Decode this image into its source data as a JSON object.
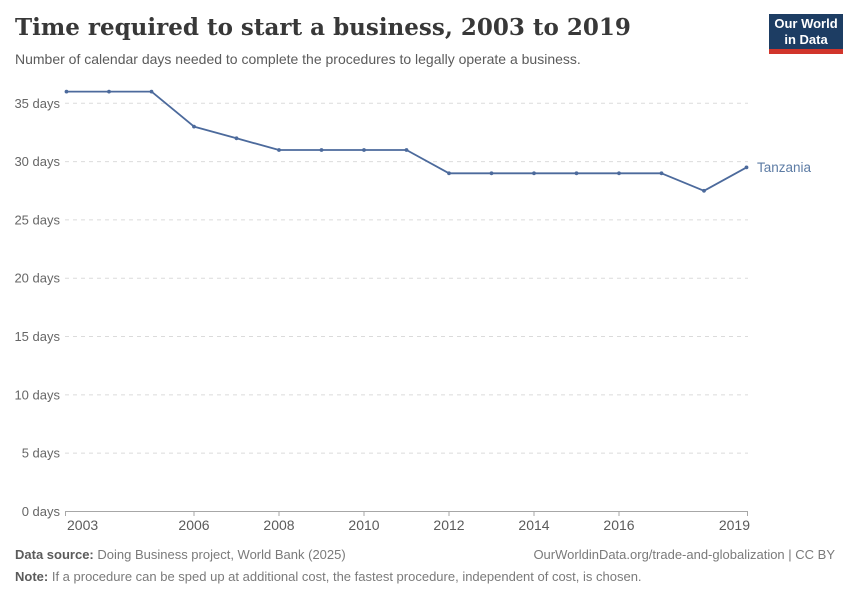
{
  "header": {
    "title": "Time required to start a business, 2003 to 2019",
    "subtitle": "Number of calendar days needed to complete the procedures to legally operate a business.",
    "logo": {
      "line1": "Our World",
      "line2": "in Data"
    }
  },
  "chart_data": {
    "type": "line",
    "title": "Time required to start a business, 2003 to 2019",
    "subtitle": "Number of calendar days needed to complete the procedures to legally operate a business.",
    "xlabel": "",
    "ylabel": "",
    "xlim": [
      2003,
      2019
    ],
    "ylim": [
      0,
      36.5
    ],
    "grid": "horizontal-dashed",
    "legend_position": "end-of-line-label",
    "x_ticks": [
      2003,
      2006,
      2008,
      2010,
      2012,
      2014,
      2016,
      2019
    ],
    "y_tick_values": [
      0,
      5,
      10,
      15,
      20,
      25,
      30,
      35
    ],
    "y_tick_labels": [
      "0 days",
      "5 days",
      "10 days",
      "15 days",
      "20 days",
      "25 days",
      "30 days",
      "35 days"
    ],
    "series": [
      {
        "name": "Tanzania",
        "x": [
          2003,
          2004,
          2005,
          2006,
          2007,
          2008,
          2009,
          2010,
          2011,
          2012,
          2013,
          2014,
          2015,
          2016,
          2017,
          2018,
          2019
        ],
        "values": [
          36,
          36,
          36,
          33,
          32,
          31,
          31,
          31,
          31,
          29,
          29,
          29,
          29,
          29,
          29,
          27.5,
          29.5
        ]
      }
    ],
    "colors": {
      "line": "#4C6A9C",
      "series_label": "#5D7CA5",
      "grid": "#DBDBDB",
      "axis": "#A7A7A7",
      "y_tick_text": "#666666",
      "x_tick_text": "#5B5B5B"
    }
  },
  "footer": {
    "source_label": "Data source:",
    "source_text": " Doing Business project, World Bank (2025)",
    "rights": "OurWorldinData.org/trade-and-globalization | CC BY",
    "note_label": "Note:",
    "note_text": " If a procedure can be sped up at additional cost, the fastest procedure, independent of cost, is chosen."
  }
}
